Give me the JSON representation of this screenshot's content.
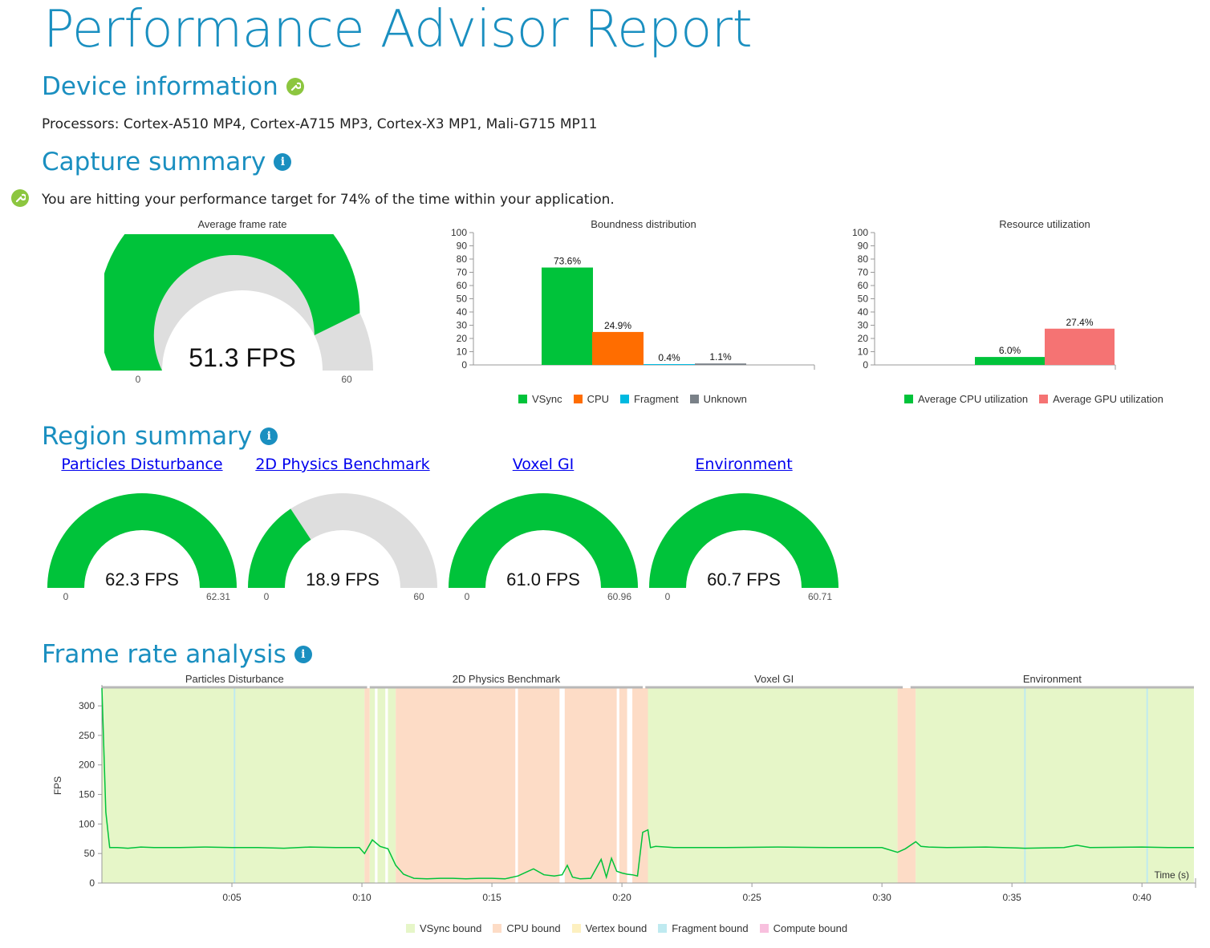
{
  "report_title": "Performance Advisor Report",
  "device": {
    "heading": "Device information",
    "processors": "Processors: Cortex-A510 MP4, Cortex-A715 MP3, Cortex-X3 MP1, Mali-G715 MP11"
  },
  "capture": {
    "heading": "Capture summary",
    "message": "You are hitting your performance target for 74% of the time within your application.",
    "avg_frame_rate": {
      "title": "Average frame rate",
      "value_label": "51.3 FPS",
      "value": 51.3,
      "min_label": "0",
      "max_label": "60",
      "max": 60,
      "fill_color": "#00c33a",
      "track_color": "#dedede"
    }
  },
  "colors": {
    "vsync": "#00c33a",
    "cpu": "#ff6d00",
    "fragment": "#00b9e0",
    "unknown": "#7a8188",
    "gpu_util": "#f57373",
    "vsync_bound": "#e6f6c8",
    "cpu_bound": "#fddcc6",
    "vertex_bound": "#fdf0c0",
    "fragment_bound": "#bfeaf0",
    "compute_bound": "#f8c0de",
    "heading": "#1a8fc0"
  },
  "chart_data": [
    {
      "type": "bar",
      "title": "Boundness distribution",
      "categories": [
        "VSync",
        "CPU",
        "Fragment",
        "Unknown"
      ],
      "values": [
        73.6,
        24.9,
        0.4,
        1.1
      ],
      "value_labels": [
        "73.6%",
        "24.9%",
        "0.4%",
        "1.1%"
      ],
      "colors": [
        "#00c33a",
        "#ff6d00",
        "#00b9e0",
        "#7a8188"
      ],
      "ylim": [
        0,
        100
      ],
      "yticks": [
        "0",
        "10",
        "20",
        "30",
        "40",
        "50",
        "60",
        "70",
        "80",
        "90",
        "100"
      ],
      "legend": [
        "VSync",
        "CPU",
        "Fragment",
        "Unknown"
      ]
    },
    {
      "type": "bar",
      "title": "Resource utilization",
      "categories": [
        "Average CPU utilization",
        "Average GPU utilization"
      ],
      "values": [
        6.0,
        27.4
      ],
      "value_labels": [
        "6.0%",
        "27.4%"
      ],
      "colors": [
        "#00c33a",
        "#f57373"
      ],
      "ylim": [
        0,
        100
      ],
      "yticks": [
        "0",
        "10",
        "20",
        "30",
        "40",
        "50",
        "60",
        "70",
        "80",
        "90",
        "100"
      ],
      "legend": [
        "Average CPU utilization",
        "Average GPU utilization"
      ]
    },
    {
      "type": "line",
      "title": "Frame rate analysis",
      "ylabel": "FPS",
      "xlabel": "Time (s)",
      "xlim": [
        0,
        42
      ],
      "ylim": [
        0,
        330
      ],
      "yticks": [
        "0",
        "50",
        "100",
        "150",
        "200",
        "250",
        "300"
      ],
      "xticks": [
        "0:05",
        "0:10",
        "0:15",
        "0:20",
        "0:25",
        "0:30",
        "0:35",
        "0:40"
      ],
      "regions": [
        {
          "name": "Particles Disturbance",
          "start": 0.0,
          "end": 10.2
        },
        {
          "name": "2D Physics Benchmark",
          "start": 10.3,
          "end": 20.8
        },
        {
          "name": "Voxel GI",
          "start": 20.9,
          "end": 30.8
        },
        {
          "name": "Environment",
          "start": 31.1,
          "end": 42.0
        }
      ],
      "bands": [
        {
          "type": "vsync",
          "start": 0.0,
          "end": 10.1
        },
        {
          "type": "cpu",
          "start": 10.1,
          "end": 10.3
        },
        {
          "type": "vsync",
          "start": 10.3,
          "end": 10.5
        },
        {
          "type": "vsync",
          "start": 10.6,
          "end": 10.9
        },
        {
          "type": "vsync",
          "start": 11.0,
          "end": 11.3
        },
        {
          "type": "cpu",
          "start": 11.3,
          "end": 15.9
        },
        {
          "type": "cpu",
          "start": 16.0,
          "end": 17.6
        },
        {
          "type": "cpu",
          "start": 17.8,
          "end": 19.8
        },
        {
          "type": "cpu",
          "start": 19.9,
          "end": 20.2
        },
        {
          "type": "cpu",
          "start": 20.4,
          "end": 21.0
        },
        {
          "type": "vsync",
          "start": 21.0,
          "end": 30.6
        },
        {
          "type": "cpu",
          "start": 30.6,
          "end": 31.3
        },
        {
          "type": "vsync",
          "start": 31.3,
          "end": 42.0
        }
      ],
      "fragment_markers": [
        5.1,
        35.5,
        40.2
      ],
      "series": [
        {
          "name": "FPS",
          "x": [
            0.0,
            0.15,
            0.3,
            0.6,
            1.0,
            1.5,
            2.0,
            3.0,
            4.0,
            5.0,
            6.0,
            7.0,
            8.0,
            9.0,
            9.9,
            10.1,
            10.4,
            10.7,
            11.0,
            11.3,
            11.6,
            12.0,
            12.5,
            13.0,
            13.5,
            14.0,
            14.5,
            15.0,
            15.5,
            16.0,
            16.3,
            16.6,
            17.0,
            17.4,
            17.7,
            17.9,
            18.1,
            18.4,
            18.8,
            19.2,
            19.4,
            19.6,
            19.8,
            20.0,
            20.2,
            20.4,
            20.6,
            20.8,
            21.0,
            21.1,
            21.3,
            22.0,
            24.0,
            26.0,
            28.0,
            30.0,
            30.6,
            30.9,
            31.3,
            31.5,
            31.8,
            32.5,
            34.0,
            35.5,
            37.0,
            37.5,
            38.0,
            40.0,
            41.0,
            42.0
          ],
          "y": [
            330,
            120,
            60,
            60,
            59,
            61,
            60,
            60,
            61,
            60,
            60,
            59,
            61,
            60,
            60,
            50,
            73,
            62,
            58,
            30,
            15,
            8,
            7,
            8,
            8,
            7,
            8,
            8,
            7,
            12,
            18,
            24,
            14,
            12,
            14,
            30,
            10,
            7,
            8,
            40,
            10,
            42,
            20,
            17,
            15,
            14,
            12,
            86,
            90,
            60,
            62,
            60,
            60,
            61,
            60,
            60,
            52,
            58,
            70,
            62,
            61,
            60,
            61,
            59,
            60,
            64,
            60,
            61,
            60,
            60
          ]
        }
      ],
      "legend": [
        "VSync bound",
        "CPU bound",
        "Vertex bound",
        "Fragment bound",
        "Compute bound"
      ]
    }
  ],
  "regions": {
    "heading": "Region summary",
    "gauges": [
      {
        "name": "Particles Disturbance",
        "value_label": "62.3 FPS",
        "value": 62.31,
        "min_label": "0",
        "max_label": "62.31",
        "max": 62.31
      },
      {
        "name": "2D Physics Benchmark",
        "value_label": "18.9 FPS",
        "value": 18.9,
        "min_label": "0",
        "max_label": "60",
        "max": 60
      },
      {
        "name": "Voxel GI",
        "value_label": "61.0 FPS",
        "value": 60.96,
        "min_label": "0",
        "max_label": "60.96",
        "max": 60.96
      },
      {
        "name": "Environment",
        "value_label": "60.7 FPS",
        "value": 60.71,
        "min_label": "0",
        "max_label": "60.71",
        "max": 60.71
      }
    ]
  },
  "frame_analysis": {
    "heading": "Frame rate analysis"
  }
}
